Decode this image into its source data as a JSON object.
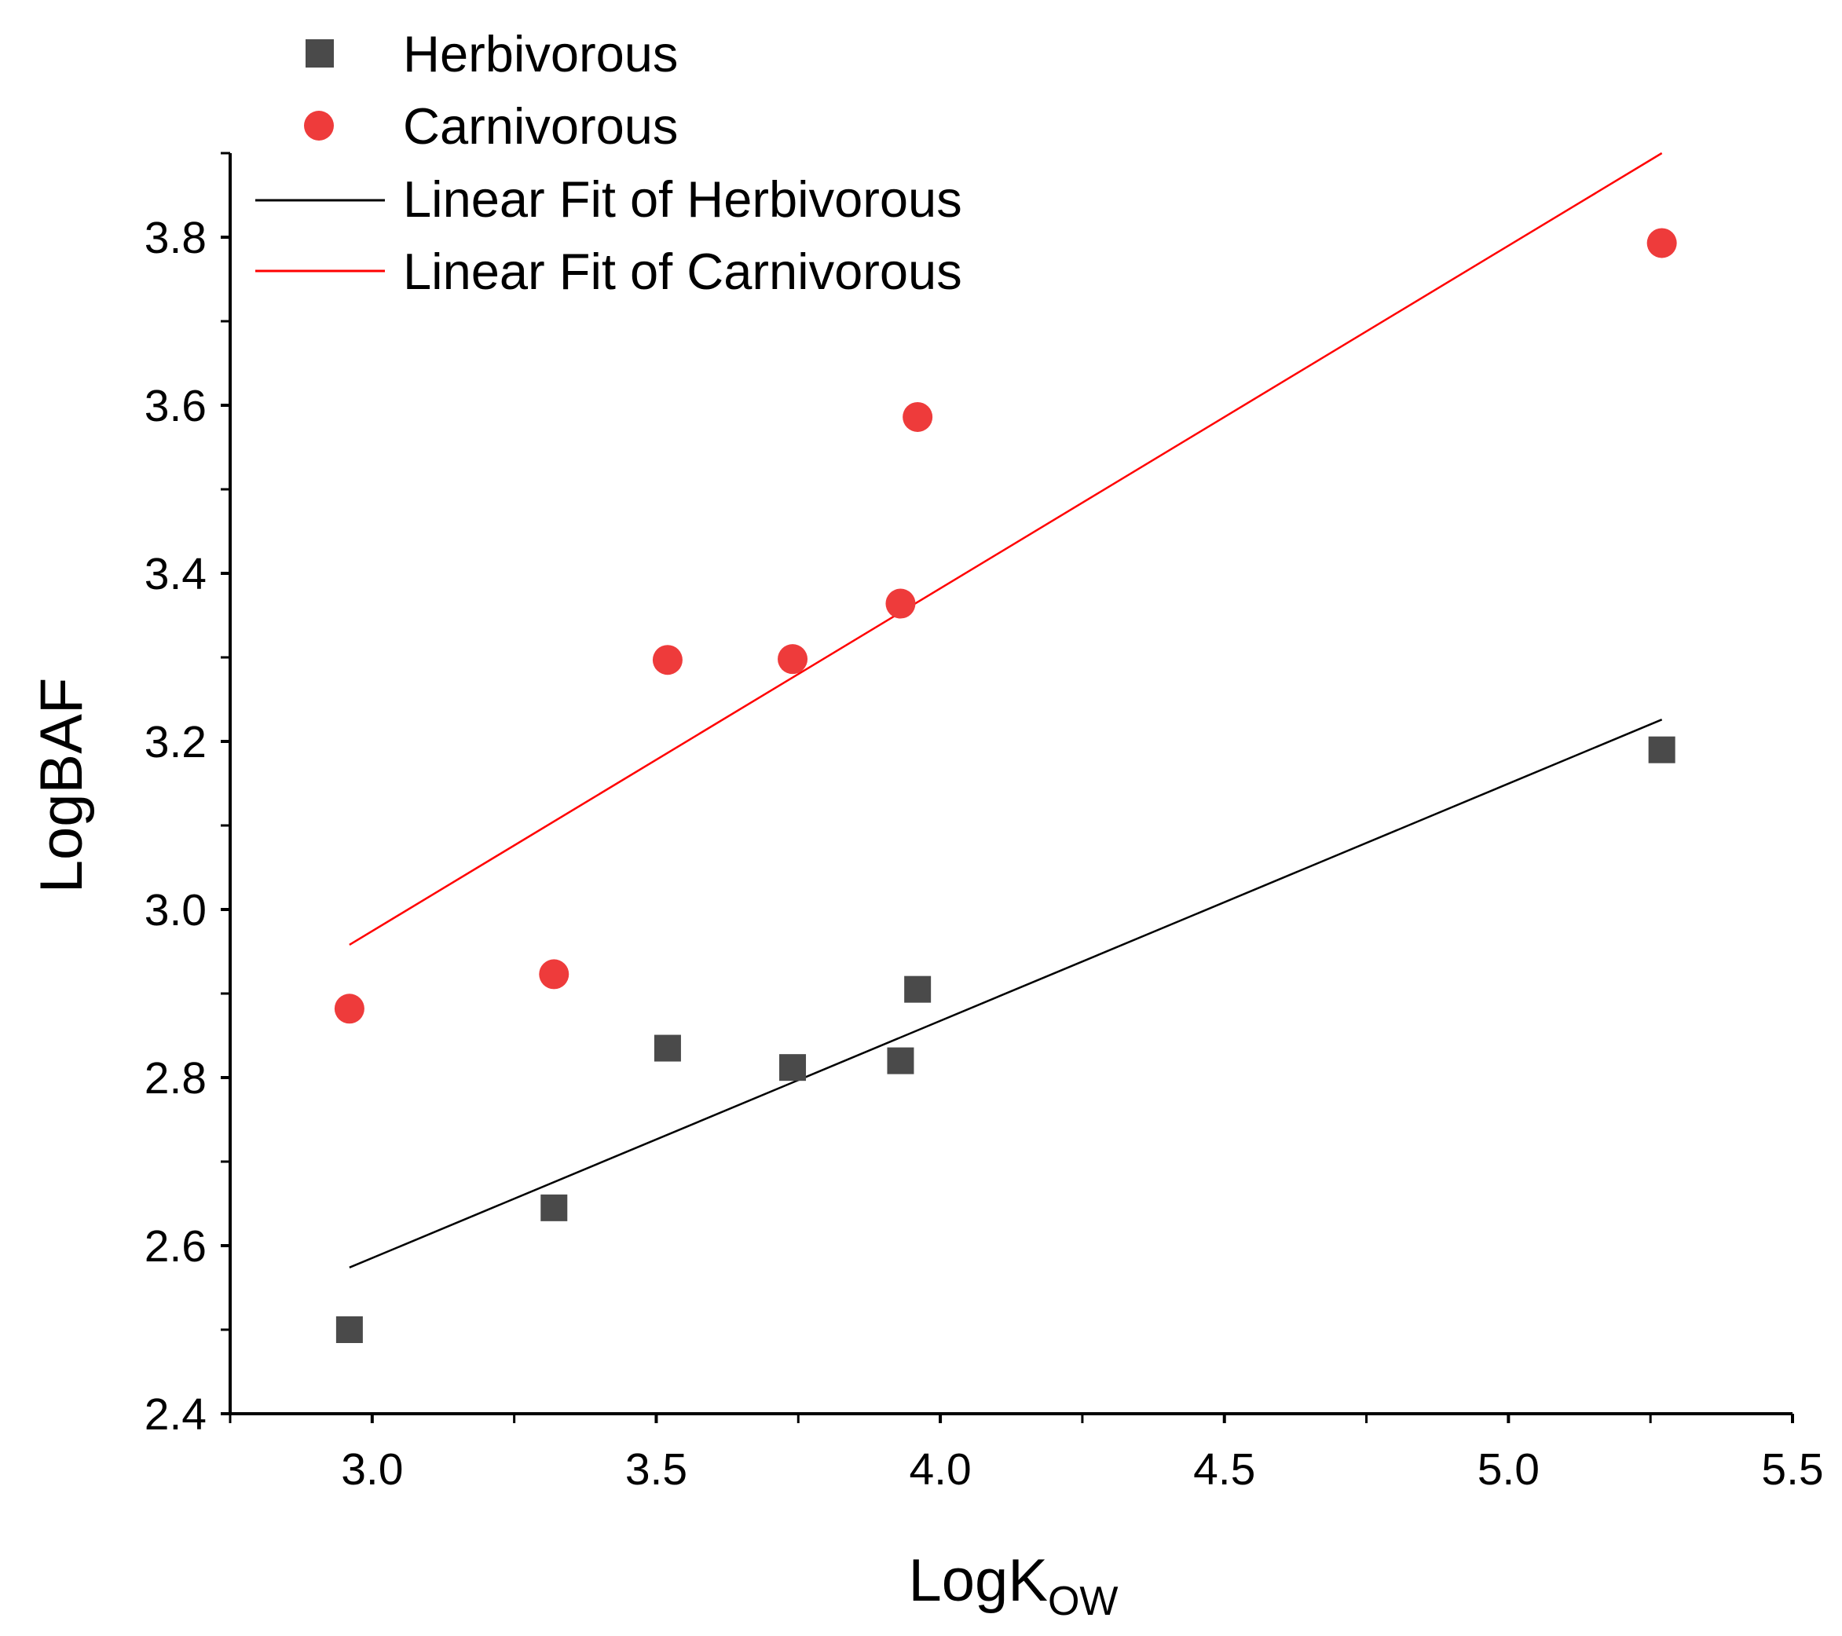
{
  "chart_data": {
    "type": "scatter",
    "xlabel": "LogK",
    "xlabel_subscript": "OW",
    "ylabel": "LogBAF",
    "xlim": [
      2.75,
      5.5
    ],
    "ylim": [
      2.4,
      3.9
    ],
    "x_ticks": [
      3.0,
      3.5,
      4.0,
      4.5,
      5.0,
      5.5
    ],
    "x_tick_labels": [
      "3.0",
      "3.5",
      "4.0",
      "4.5",
      "5.0",
      "5.5"
    ],
    "y_ticks": [
      2.4,
      2.6,
      2.8,
      3.0,
      3.2,
      3.4,
      3.6,
      3.8
    ],
    "y_tick_labels": [
      "2.4",
      "2.6",
      "2.8",
      "3.0",
      "3.2",
      "3.4",
      "3.6",
      "3.8"
    ],
    "grid": false,
    "legend_position": "top-left",
    "series": [
      {
        "name": "Herbivorous",
        "marker": "square",
        "color": "#4a4a4a",
        "x": [
          2.96,
          3.32,
          3.52,
          3.74,
          3.93,
          3.96,
          5.27
        ],
        "y": [
          2.5,
          2.645,
          2.835,
          2.812,
          2.82,
          2.905,
          3.19
        ]
      },
      {
        "name": "Carnivorous",
        "marker": "circle",
        "color": "#ee3b3b",
        "x": [
          2.96,
          3.32,
          3.52,
          3.74,
          3.93,
          3.96,
          5.27
        ],
        "y": [
          2.882,
          2.923,
          3.297,
          3.298,
          3.364,
          3.586,
          3.793
        ]
      }
    ],
    "fits": [
      {
        "name": "Linear Fit of Herbivorous",
        "color": "#000000",
        "x": [
          2.96,
          5.27
        ],
        "y": [
          2.574,
          3.226
        ]
      },
      {
        "name": "Linear Fit of Carnivorous",
        "color": "#ff0000",
        "x": [
          2.96,
          5.27
        ],
        "y": [
          2.958,
          3.9
        ]
      }
    ]
  }
}
